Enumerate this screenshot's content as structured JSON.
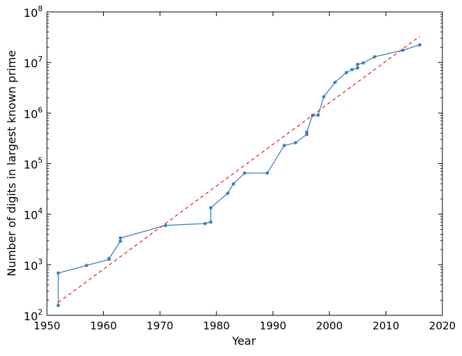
{
  "chart_data": {
    "type": "line",
    "title": "",
    "xlabel": "Year",
    "ylabel": "Number of digits in largest known prime",
    "xlim": [
      1950,
      2020
    ],
    "ylim": [
      100,
      100000000
    ],
    "yscale": "log",
    "grid": false,
    "x_ticks": [
      1950,
      1960,
      1970,
      1980,
      1990,
      2000,
      2010,
      2020
    ],
    "x_tick_labels": [
      "1950",
      "1960",
      "1970",
      "1980",
      "1990",
      "2000",
      "2010",
      "2020"
    ],
    "y_ticks": [
      {
        "value": 100,
        "base": "10",
        "exp": "2"
      },
      {
        "value": 1000,
        "base": "10",
        "exp": "3"
      },
      {
        "value": 10000,
        "base": "10",
        "exp": "4"
      },
      {
        "value": 100000,
        "base": "10",
        "exp": "5"
      },
      {
        "value": 1000000,
        "base": "10",
        "exp": "6"
      },
      {
        "value": 10000000,
        "base": "10",
        "exp": "7"
      },
      {
        "value": 100000000,
        "base": "10",
        "exp": "8"
      }
    ],
    "series": [
      {
        "color": "#3a83c0",
        "style": "solid-with-markers",
        "x": [
          1952,
          1952,
          1957,
          1961,
          1961,
          1963,
          1963,
          1971,
          1978,
          1979,
          1979,
          1982,
          1983,
          1985,
          1989,
          1992,
          1994,
          1996,
          1996,
          1997,
          1998,
          1999,
          2001,
          2003,
          2004,
          2005,
          2005,
          2006,
          2008,
          2013,
          2016
        ],
        "y": [
          157,
          687,
          969,
          1281,
          1332,
          2917,
          3376,
          6002,
          6533,
          6987,
          13395,
          25962,
          39751,
          65050,
          65087,
          227832,
          258716,
          378632,
          420921,
          895932,
          909526,
          2098960,
          4053946,
          6320430,
          7235733,
          7816230,
          9152052,
          9808358,
          12978189,
          17425170,
          22338618
        ]
      },
      {
        "color": "#e41a1c",
        "style": "dashed",
        "x": [
          1952,
          2016
        ],
        "y": [
          180,
          33000000
        ]
      }
    ]
  }
}
